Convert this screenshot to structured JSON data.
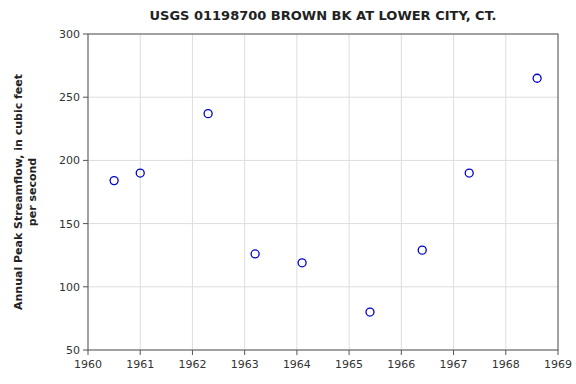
{
  "chart_data": {
    "type": "scatter",
    "title": "USGS 01198700 BROWN BK AT LOWER CITY, CT.",
    "ylabel": "Annual Peak Streamflow, in cubic feet\nper second",
    "x": [
      1960.5,
      1961.0,
      1962.3,
      1963.2,
      1964.1,
      1965.4,
      1966.4,
      1967.3,
      1968.6
    ],
    "values": [
      184,
      190,
      237,
      126,
      119,
      80,
      129,
      190,
      265
    ],
    "xlim": [
      1960,
      1969
    ],
    "ylim": [
      50,
      300
    ],
    "xticks": [
      1960,
      1961,
      1962,
      1963,
      1964,
      1965,
      1966,
      1967,
      1968,
      1969
    ],
    "yticks": [
      50,
      100,
      150,
      200,
      250,
      300
    ],
    "color": "#0000cc",
    "marker": "open-circle",
    "grid": true
  }
}
